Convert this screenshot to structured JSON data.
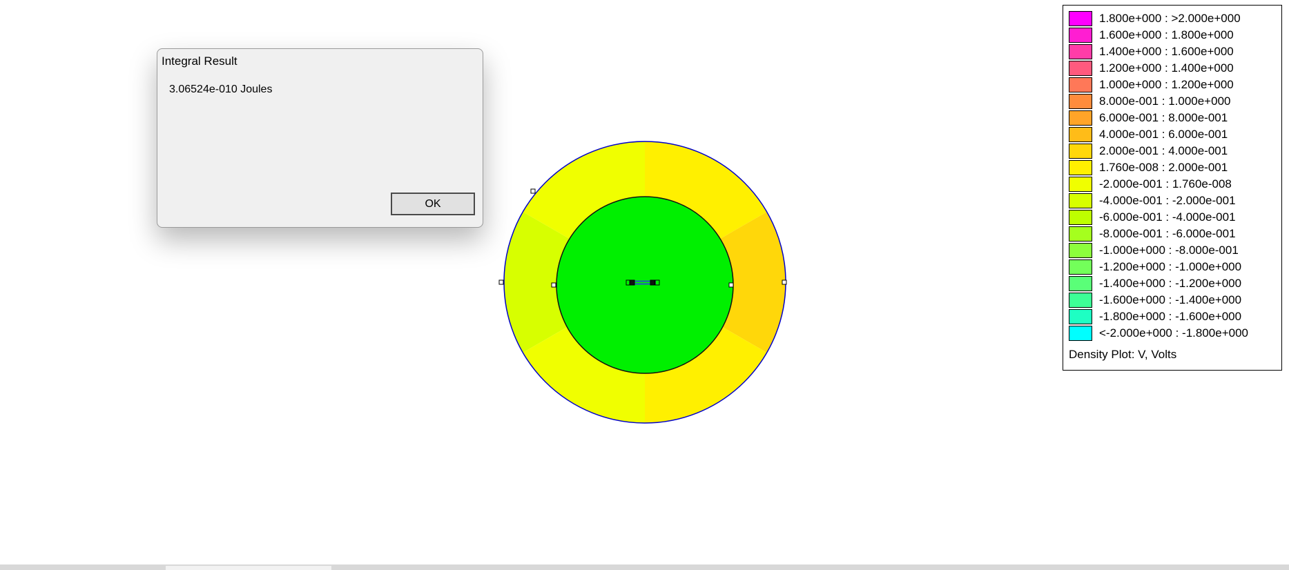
{
  "dialog": {
    "title": "Integral Result",
    "message": "3.06524e-010 Joules",
    "ok_label": "OK"
  },
  "legend": {
    "title": "Density Plot: V, Volts",
    "entries": [
      {
        "label": "1.800e+000 : >2.000e+000",
        "color": "#ff00ff"
      },
      {
        "label": "1.600e+000 : 1.800e+000",
        "color": "#ff1ed2"
      },
      {
        "label": "1.400e+000 : 1.600e+000",
        "color": "#ff3ca8"
      },
      {
        "label": "1.200e+000 : 1.400e+000",
        "color": "#ff5a7e"
      },
      {
        "label": "1.000e+000 : 1.200e+000",
        "color": "#ff7858"
      },
      {
        "label": "8.000e-001 : 1.000e+000",
        "color": "#ff8c3c"
      },
      {
        "label": "6.000e-001 : 8.000e-001",
        "color": "#ffa428"
      },
      {
        "label": "4.000e-001 : 6.000e-001",
        "color": "#ffbc18"
      },
      {
        "label": "2.000e-001 : 4.000e-001",
        "color": "#ffd70a"
      },
      {
        "label": "1.760e-008 : 2.000e-001",
        "color": "#fff000"
      },
      {
        "label": "-2.000e-001 : 1.760e-008",
        "color": "#f0ff00"
      },
      {
        "label": "-4.000e-001 : -2.000e-001",
        "color": "#d7ff00"
      },
      {
        "label": "-6.000e-001 : -4.000e-001",
        "color": "#beff00"
      },
      {
        "label": "-8.000e-001 : -6.000e-001",
        "color": "#a5ff1e"
      },
      {
        "label": "-1.000e+000 : -8.000e-001",
        "color": "#8cff3c"
      },
      {
        "label": "-1.200e+000 : -1.000e+000",
        "color": "#73ff5a"
      },
      {
        "label": "-1.400e+000 : -1.200e+000",
        "color": "#5aff78"
      },
      {
        "label": "-1.600e+000 : -1.400e+000",
        "color": "#3cff96"
      },
      {
        "label": "-1.800e+000 : -1.600e+000",
        "color": "#1effc3"
      },
      {
        "label": "<-2.000e+000 : -1.800e+000",
        "color": "#00ffff"
      }
    ]
  },
  "plot": {
    "outer_ring_colors": {
      "top_right": "#fff000",
      "top_left": "#f0ff00",
      "right": "#ffd70a",
      "left": "#d7ff00",
      "bottom_left": "#f0ff00",
      "bottom_right": "#fff000"
    },
    "inner_disk_color": "#00f000",
    "boundary_color": "#0000cc",
    "conductor_color": "#2850c8"
  }
}
